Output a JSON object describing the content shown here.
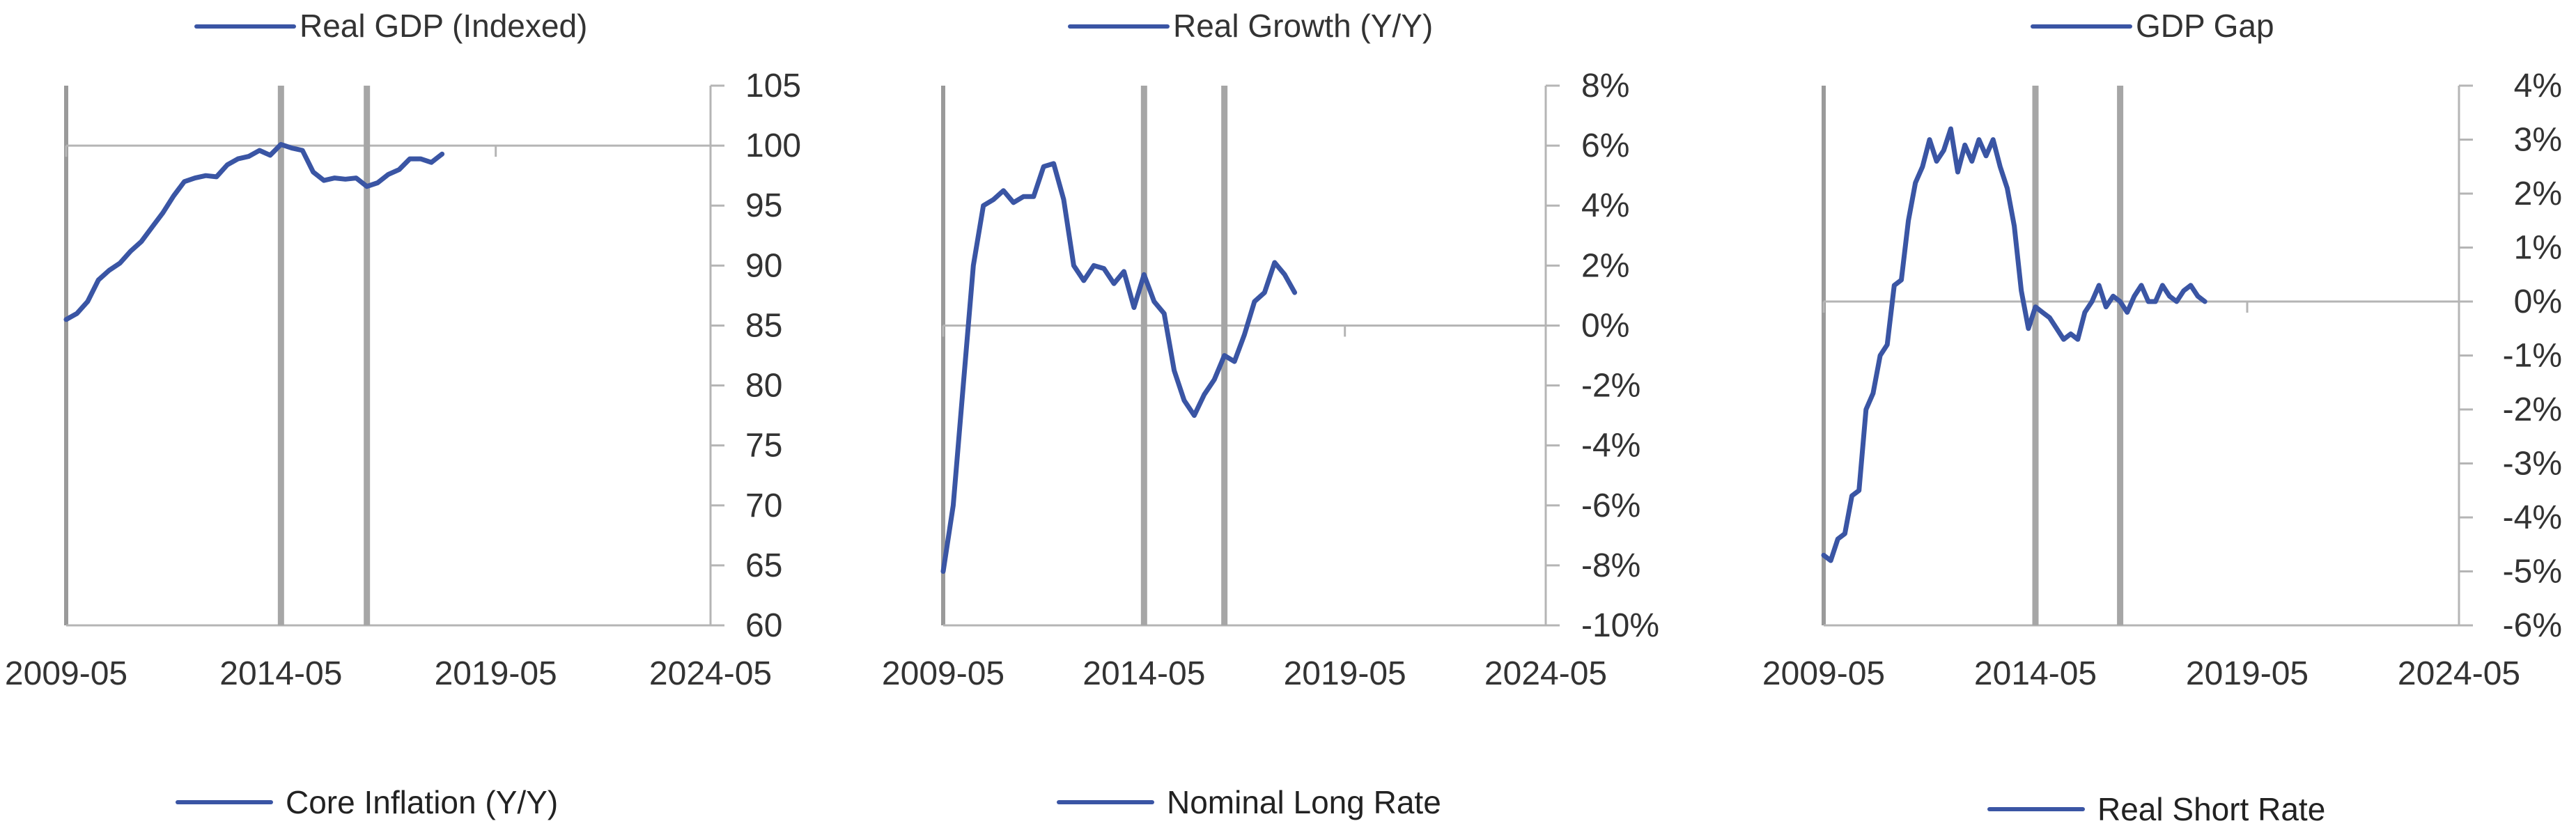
{
  "colors": {
    "series": "#3a55a4",
    "axis": "#9a9a9a",
    "zero": "#b5b5b5",
    "marker": "#a6a6a6",
    "text": "#222222"
  },
  "chart_data": [
    {
      "type": "line",
      "series_name": "Real GDP (Indexed)",
      "xticks": [
        "2009-05",
        "2014-05",
        "2019-05",
        "2024-05"
      ],
      "xlim": [
        "2009-05",
        "2024-05"
      ],
      "yticks": [
        "105",
        "100",
        "95",
        "90",
        "85",
        "80",
        "75",
        "70",
        "65",
        "60"
      ],
      "ylim": [
        60,
        105
      ],
      "reference_line": 100,
      "markers": [
        "2014-05",
        "2016-05"
      ],
      "x": [
        "2009-05",
        "2009-08",
        "2009-11",
        "2010-02",
        "2010-05",
        "2010-08",
        "2010-11",
        "2011-02",
        "2011-05",
        "2011-08",
        "2011-11",
        "2012-02",
        "2012-05",
        "2012-08",
        "2012-11",
        "2013-02",
        "2013-05",
        "2013-08",
        "2013-11",
        "2014-02",
        "2014-05",
        "2014-08",
        "2014-11",
        "2015-02",
        "2015-05",
        "2015-08",
        "2015-11",
        "2016-02",
        "2016-05",
        "2016-08",
        "2016-11",
        "2017-02",
        "2017-05",
        "2017-08",
        "2017-11",
        "2018-02"
      ],
      "values": [
        85.5,
        86.0,
        87.0,
        88.8,
        89.6,
        90.2,
        91.2,
        92.0,
        93.2,
        94.4,
        95.8,
        97.0,
        97.3,
        97.5,
        97.4,
        98.4,
        98.9,
        99.1,
        99.6,
        99.2,
        100.1,
        99.8,
        99.6,
        97.8,
        97.1,
        97.3,
        97.2,
        97.3,
        96.6,
        96.9,
        97.6,
        98.0,
        98.9,
        98.9,
        98.6,
        99.3
      ]
    },
    {
      "type": "line",
      "series_name": "Real Growth (Y/Y)",
      "xticks": [
        "2009-05",
        "2014-05",
        "2019-05",
        "2024-05"
      ],
      "xlim": [
        "2009-05",
        "2024-05"
      ],
      "yticks": [
        "8%",
        "6%",
        "4%",
        "2%",
        "0%",
        "-2%",
        "-4%",
        "-6%",
        "-8%",
        "-10%"
      ],
      "ylim": [
        -10,
        8
      ],
      "reference_line": 0,
      "markers": [
        "2014-05",
        "2016-05"
      ],
      "x": [
        "2009-05",
        "2009-08",
        "2009-11",
        "2010-02",
        "2010-05",
        "2010-08",
        "2010-11",
        "2011-02",
        "2011-05",
        "2011-08",
        "2011-11",
        "2012-02",
        "2012-05",
        "2012-08",
        "2012-11",
        "2013-02",
        "2013-05",
        "2013-08",
        "2013-11",
        "2014-02",
        "2014-05",
        "2014-08",
        "2014-11",
        "2015-02",
        "2015-05",
        "2015-08",
        "2015-11",
        "2016-02",
        "2016-05",
        "2016-08",
        "2016-11",
        "2017-02",
        "2017-05",
        "2017-08",
        "2017-11",
        "2018-02"
      ],
      "values": [
        -8.2,
        -6.0,
        -2.0,
        2.0,
        4.0,
        4.2,
        4.5,
        4.1,
        4.3,
        4.3,
        5.3,
        5.4,
        4.2,
        2.0,
        1.5,
        2.0,
        1.9,
        1.4,
        1.8,
        0.6,
        1.7,
        0.8,
        0.4,
        -1.5,
        -2.5,
        -3.0,
        -2.3,
        -1.8,
        -1.0,
        -1.2,
        -0.3,
        0.8,
        1.1,
        2.1,
        1.7,
        1.1
      ]
    },
    {
      "type": "line",
      "series_name": "GDP Gap",
      "xticks": [
        "2009-05",
        "2014-05",
        "2019-05",
        "2024-05"
      ],
      "xlim": [
        "2009-05",
        "2024-05"
      ],
      "yticks": [
        "4%",
        "3%",
        "2%",
        "1%",
        "0%",
        "-1%",
        "-2%",
        "-3%",
        "-4%",
        "-5%",
        "-6%"
      ],
      "ylim": [
        -6,
        4
      ],
      "reference_line": 0,
      "markers": [
        "2014-05",
        "2016-05"
      ],
      "x": [
        "2009-05",
        "2009-07",
        "2009-09",
        "2009-11",
        "2010-01",
        "2010-03",
        "2010-05",
        "2010-07",
        "2010-09",
        "2010-11",
        "2011-01",
        "2011-03",
        "2011-05",
        "2011-07",
        "2011-09",
        "2011-11",
        "2012-01",
        "2012-03",
        "2012-05",
        "2012-07",
        "2012-09",
        "2012-11",
        "2013-01",
        "2013-03",
        "2013-05",
        "2013-07",
        "2013-09",
        "2013-11",
        "2014-01",
        "2014-03",
        "2014-05",
        "2014-07",
        "2014-09",
        "2014-11",
        "2015-01",
        "2015-03",
        "2015-05",
        "2015-07",
        "2015-09",
        "2015-11",
        "2016-01",
        "2016-03",
        "2016-05",
        "2016-07",
        "2016-09",
        "2016-11",
        "2017-01",
        "2017-03",
        "2017-05",
        "2017-07",
        "2017-09",
        "2017-11",
        "2018-01",
        "2018-03",
        "2018-05"
      ],
      "values": [
        -4.7,
        -4.8,
        -4.4,
        -4.3,
        -3.6,
        -3.5,
        -2.0,
        -1.7,
        -1.0,
        -0.8,
        0.3,
        0.4,
        1.5,
        2.2,
        2.5,
        3.0,
        2.6,
        2.8,
        3.2,
        2.4,
        2.9,
        2.6,
        3.0,
        2.7,
        3.0,
        2.5,
        2.1,
        1.4,
        0.2,
        -0.5,
        -0.1,
        -0.2,
        -0.3,
        -0.5,
        -0.7,
        -0.6,
        -0.7,
        -0.2,
        0.0,
        0.3,
        -0.1,
        0.1,
        0.0,
        -0.2,
        0.1,
        0.3,
        0.0,
        0.0,
        0.3,
        0.1,
        0.0,
        0.2,
        0.3,
        0.1,
        0.0
      ]
    }
  ],
  "bottom_legends": [
    "Core Inflation (Y/Y)",
    "Nominal Long Rate",
    "Real Short Rate"
  ]
}
